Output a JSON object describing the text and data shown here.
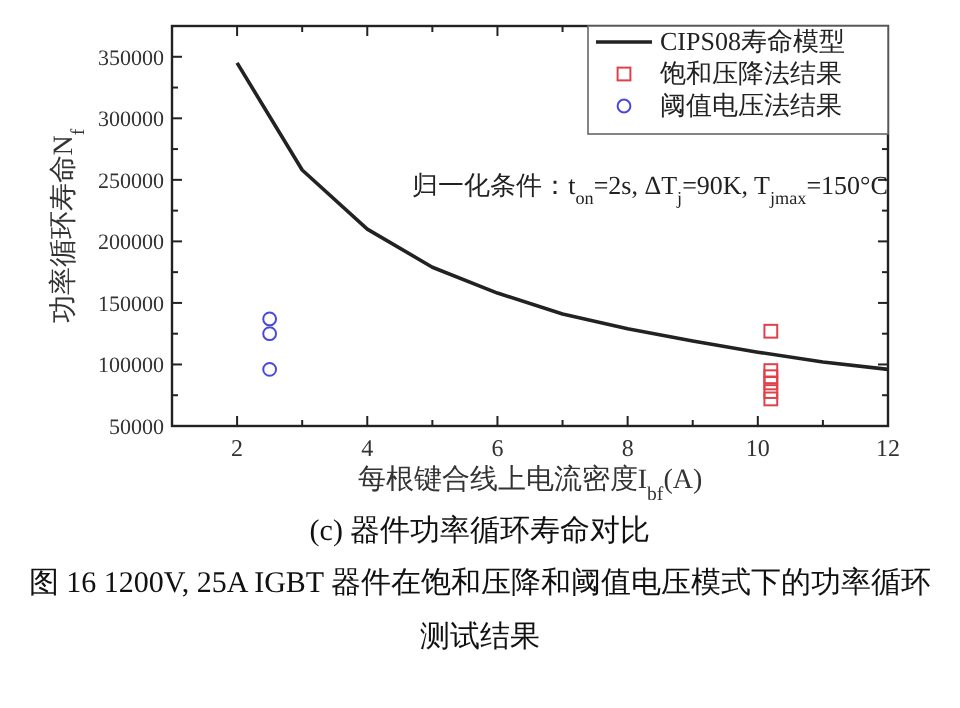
{
  "chart_data": {
    "type": "line",
    "title": "(c) 器件功率循环寿命对比",
    "xlabel": "每根键合线上电流密度I$_{bf}$(A)",
    "ylabel": "功率循环寿命N$_{f}$",
    "annotations": [
      "归一化条件：t$_{on}$=2s, ΔT$_{j}$=90K, T$_{jmax}$=150°C",
      "图 16  1200V, 25A IGBT 器件在饱和压降和阈值电压模式下的功率循环测试结果"
    ],
    "series": [
      {
        "name": "CIPS08寿命模型",
        "type": "line",
        "color": "#222222",
        "marker": "none",
        "line_style": "solid",
        "x": [
          2,
          3,
          4,
          5,
          6,
          7,
          8,
          9,
          10,
          11,
          12
        ],
        "values": [
          345000,
          258000,
          210000,
          179000,
          158000,
          141000,
          129000,
          119000,
          110000,
          102000,
          96000
        ]
      },
      {
        "name": "饱和压降法结果",
        "type": "scatter",
        "color": "#e0404a",
        "marker": "square",
        "x": [
          10.2,
          10.2,
          10.2,
          10.2,
          10.2,
          10.2
        ],
        "values": [
          127000,
          95000,
          90000,
          85000,
          78000,
          72000
        ]
      },
      {
        "name": "阈值电压法结果",
        "type": "scatter",
        "color": "#4a4ad8",
        "marker": "circle",
        "x": [
          2.5,
          2.5,
          2.5
        ],
        "values": [
          137000,
          125000,
          96000
        ]
      }
    ],
    "xlim": [
      1,
      12
    ],
    "ylim": [
      50000,
      375000
    ],
    "xticks": [
      2,
      4,
      6,
      8,
      10,
      12
    ],
    "yticks": [
      50000,
      100000,
      150000,
      200000,
      250000,
      300000,
      350000
    ],
    "grid": false,
    "legend": "top right"
  }
}
